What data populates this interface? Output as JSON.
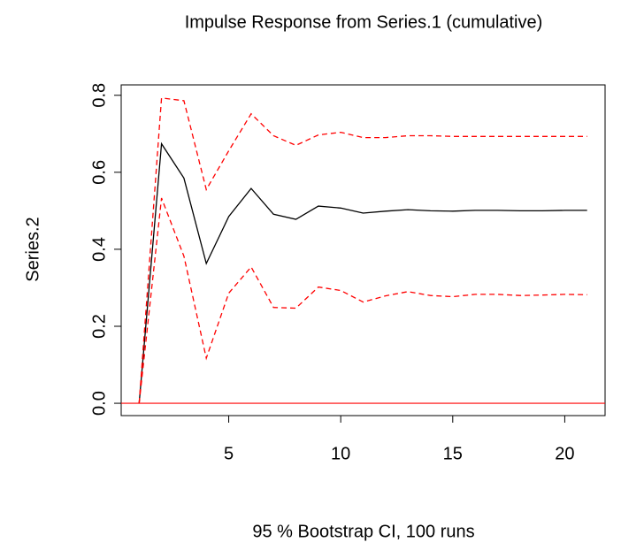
{
  "chart_data": {
    "type": "line",
    "title": "Impulse Response from Series.1 (cumulative)",
    "y_label": "Series.2",
    "x_label": "95 % Bootstrap CI, 100 runs",
    "x": [
      1,
      2,
      3,
      4,
      5,
      6,
      7,
      8,
      9,
      10,
      11,
      12,
      13,
      14,
      15,
      16,
      17,
      18,
      19,
      20,
      21
    ],
    "series": [
      {
        "color": "#000000",
        "style": "solid",
        "values": [
          0,
          0.674,
          0.585,
          0.363,
          0.485,
          0.558,
          0.491,
          0.478,
          0.512,
          0.507,
          0.494,
          0.499,
          0.503,
          0.5,
          0.499,
          0.501,
          0.501,
          0.5,
          0.5,
          0.501,
          0.501
        ]
      },
      {
        "color": "#ff0000",
        "style": "dashed",
        "values": [
          0,
          0.793,
          0.786,
          0.555,
          0.656,
          0.752,
          0.695,
          0.67,
          0.697,
          0.704,
          0.69,
          0.69,
          0.695,
          0.695,
          0.693,
          0.693,
          0.693,
          0.693,
          0.693,
          0.693,
          0.693
        ]
      },
      {
        "color": "#ff0000",
        "style": "dashed",
        "values": [
          0,
          0.533,
          0.382,
          0.117,
          0.286,
          0.354,
          0.249,
          0.247,
          0.302,
          0.293,
          0.263,
          0.279,
          0.29,
          0.28,
          0.277,
          0.283,
          0.283,
          0.28,
          0.281,
          0.283,
          0.282
        ]
      }
    ],
    "hline": {
      "value": 0,
      "color": "#ff0000"
    },
    "xlim": [
      0.2,
      21.8
    ],
    "xticks": [
      5,
      10,
      15,
      20
    ],
    "ylim": [
      -0.032,
      0.827
    ],
    "yticks": [
      {
        "value": 0,
        "label": "0.0"
      },
      0.2,
      0.4,
      0.6,
      0.8
    ]
  }
}
